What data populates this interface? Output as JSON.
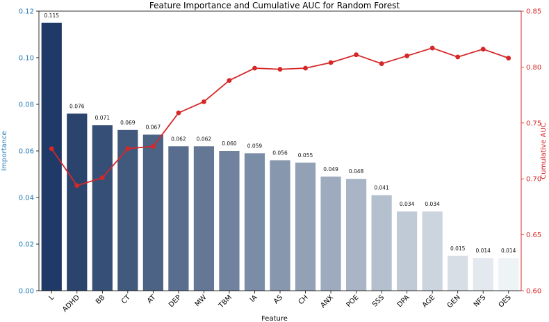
{
  "chart_data": {
    "type": "bar",
    "title": "Feature Importance and Cumulative AUC for Random Forest",
    "xlabel": "Feature",
    "ylabel": "Importance",
    "y2label": "Cumulative AUC",
    "categories": [
      "L",
      "ADHD",
      "BB",
      "CT",
      "AT",
      "DEP",
      "MW",
      "TBM",
      "IA",
      "AS",
      "CH",
      "ANX",
      "POE",
      "SSS",
      "DPA",
      "AGE",
      "GEN",
      "NFS",
      "OES"
    ],
    "values": [
      0.115,
      0.076,
      0.071,
      0.069,
      0.067,
      0.062,
      0.062,
      0.06,
      0.059,
      0.056,
      0.055,
      0.049,
      0.048,
      0.041,
      0.034,
      0.034,
      0.015,
      0.014,
      0.014
    ],
    "value_labels": [
      "0.115",
      "0.076",
      "0.071",
      "0.069",
      "0.067",
      "0.062",
      "0.062",
      "0.060",
      "0.059",
      "0.056",
      "0.055",
      "0.049",
      "0.048",
      "0.041",
      "0.034",
      "0.034",
      "0.015",
      "0.014",
      "0.014"
    ],
    "ylim": [
      0,
      0.12
    ],
    "yticks": [
      "0.00",
      "0.02",
      "0.04",
      "0.06",
      "0.08",
      "0.10",
      "0.12"
    ],
    "cumulative_auc": [
      0.727,
      0.694,
      0.701,
      0.727,
      0.729,
      0.759,
      0.769,
      0.788,
      0.799,
      0.798,
      0.799,
      0.804,
      0.811,
      0.803,
      0.81,
      0.817,
      0.809,
      0.816,
      0.808
    ],
    "y2lim": [
      0.6,
      0.85
    ],
    "y2ticks": [
      "0.60",
      "0.65",
      "0.70",
      "0.75",
      "0.80",
      "0.85"
    ],
    "colors": {
      "bar_start": "#1f3a66",
      "bar_end": "#eef3f6",
      "line": "#d62728",
      "left_axis_label": "#1f77b4",
      "right_axis": "#d62728"
    },
    "grid": false,
    "legend": "none"
  }
}
